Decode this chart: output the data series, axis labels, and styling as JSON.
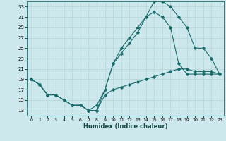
{
  "xlabel": "Humidex (Indice chaleur)",
  "bg_color": "#cce8ec",
  "grid_color": "#b8d8dc",
  "line_color": "#1a6b6b",
  "xlim": [
    -0.5,
    23.5
  ],
  "ylim": [
    12,
    34
  ],
  "xticks": [
    0,
    1,
    2,
    3,
    4,
    5,
    6,
    7,
    8,
    9,
    10,
    11,
    12,
    13,
    14,
    15,
    16,
    17,
    18,
    19,
    20,
    21,
    22,
    23
  ],
  "yticks": [
    13,
    15,
    17,
    19,
    21,
    23,
    25,
    27,
    29,
    31,
    33
  ],
  "curve_upper_x": [
    0,
    1,
    2,
    3,
    4,
    5,
    6,
    7,
    8,
    9,
    10,
    11,
    12,
    13,
    14,
    15,
    16,
    17,
    18,
    19,
    20,
    21,
    22,
    23
  ],
  "curve_upper_y": [
    19,
    18,
    16,
    16,
    15,
    14,
    14,
    13,
    13,
    17,
    22,
    25,
    27,
    29,
    31,
    34,
    34,
    33,
    31,
    29,
    25,
    25,
    23,
    20
  ],
  "curve_mid_x": [
    0,
    1,
    2,
    3,
    4,
    5,
    6,
    7,
    8,
    9,
    10,
    11,
    12,
    13,
    14,
    15,
    16,
    17,
    18,
    19,
    20,
    21,
    22,
    23
  ],
  "curve_mid_y": [
    19,
    18,
    16,
    16,
    15,
    14,
    14,
    13,
    14,
    17,
    22,
    24,
    26,
    28,
    31,
    32,
    31,
    29,
    22,
    20,
    20,
    20,
    20,
    20
  ],
  "curve_flat_x": [
    0,
    1,
    2,
    3,
    4,
    5,
    6,
    7,
    8,
    9,
    10,
    11,
    12,
    13,
    14,
    15,
    16,
    17,
    18,
    19,
    20,
    21,
    22,
    23
  ],
  "curve_flat_y": [
    19,
    18,
    16,
    16,
    15,
    14,
    14,
    13,
    13,
    16,
    17,
    17.5,
    18,
    18.5,
    19,
    19.5,
    20,
    20.5,
    21,
    21,
    20.5,
    20.5,
    20.5,
    20
  ]
}
